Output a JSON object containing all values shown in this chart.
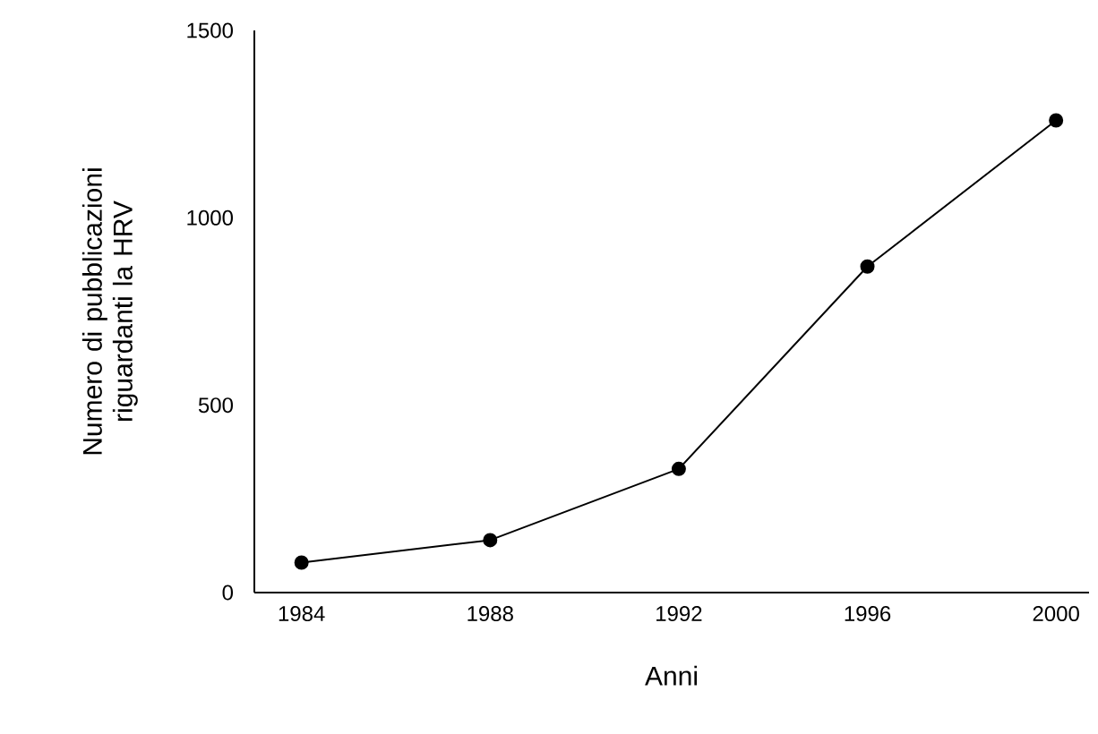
{
  "chart_data": {
    "type": "line",
    "xlabel": "Anni",
    "ylabel": "Numero di pubblicazioni riguardanti la HRV",
    "x": [
      1984,
      1988,
      1992,
      1996,
      2000
    ],
    "series": [
      {
        "color": "#000000",
        "values": [
          80,
          140,
          330,
          870,
          1260
        ]
      }
    ],
    "xlim": [
      1983,
      2000.7
    ],
    "ylim": [
      0,
      1500
    ],
    "xticks": [
      1984,
      1988,
      1992,
      1996,
      2000
    ],
    "yticks": [
      0,
      500,
      1000,
      1500
    ],
    "marker": "circle",
    "line_style": "solid"
  }
}
